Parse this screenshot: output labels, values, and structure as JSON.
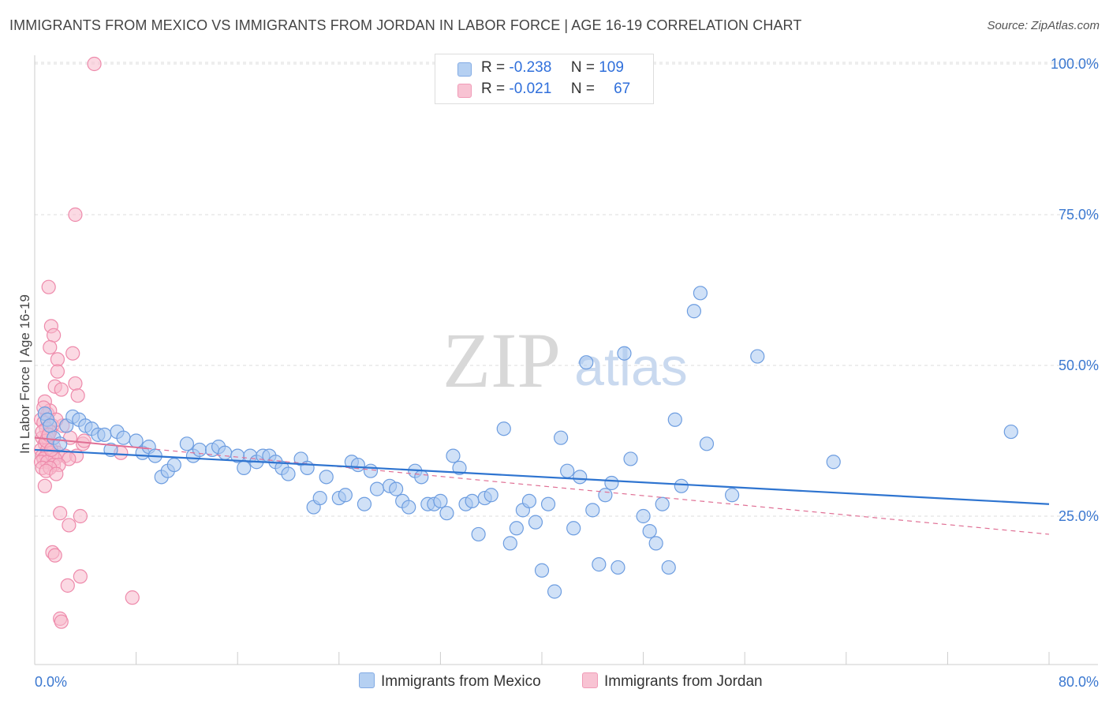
{
  "title": "IMMIGRANTS FROM MEXICO VS IMMIGRANTS FROM JORDAN IN LABOR FORCE | AGE 16-19 CORRELATION CHART",
  "source": "Source: ZipAtlas.com",
  "watermark": {
    "zip": "ZIP",
    "atlas": "atlas"
  },
  "legend_top": {
    "rows": [
      {
        "r_label": "R =",
        "r_value": "-0.238",
        "n_label": "N =",
        "n_value": "109"
      },
      {
        "r_label": "R =",
        "r_value": "-0.021",
        "n_label": "N =",
        "n_value": "67"
      }
    ]
  },
  "legend_bottom": {
    "items": [
      "Immigrants from Mexico",
      "Immigrants from Jordan"
    ]
  },
  "colors": {
    "mexico_fill": "#a9c8f0",
    "mexico_stroke": "#6d9de0",
    "mexico_line": "#2e74d0",
    "jordan_fill": "#f7b9cc",
    "jordan_stroke": "#ee8aab",
    "jordan_line": "#e07095",
    "grid": "#dddddd",
    "tick_label": "#3b78d0"
  },
  "chart_data": {
    "type": "scatter",
    "title": "IMMIGRANTS FROM MEXICO VS IMMIGRANTS FROM JORDAN IN LABOR FORCE | AGE 16-19 CORRELATION CHART",
    "xlabel": "",
    "ylabel": "In Labor Force | Age 16-19",
    "xlim": [
      0,
      80
    ],
    "ylim": [
      0,
      105
    ],
    "x_tick_labels": [
      {
        "value": 0,
        "label": "0.0%"
      },
      {
        "value": 80,
        "label": "80.0%"
      }
    ],
    "y_tick_labels": [
      {
        "value": 25,
        "label": "25.0%"
      },
      {
        "value": 50,
        "label": "50.0%"
      },
      {
        "value": 75,
        "label": "75.0%"
      },
      {
        "value": 100,
        "label": "100.0%"
      }
    ],
    "grid": true,
    "series": [
      {
        "name": "Immigrants from Mexico",
        "R": -0.238,
        "N": 109,
        "trend": {
          "x": [
            0,
            80
          ],
          "y": [
            36.0,
            27.0
          ]
        },
        "points": [
          [
            0.8,
            42
          ],
          [
            1,
            41
          ],
          [
            1.2,
            40
          ],
          [
            1.5,
            38
          ],
          [
            2,
            37
          ],
          [
            2.5,
            40
          ],
          [
            3,
            41.5
          ],
          [
            3.5,
            41
          ],
          [
            4,
            40
          ],
          [
            4.5,
            39.5
          ],
          [
            5,
            38.5
          ],
          [
            5.5,
            38.5
          ],
          [
            6,
            36
          ],
          [
            6.5,
            39
          ],
          [
            7,
            38
          ],
          [
            8,
            37.5
          ],
          [
            8.5,
            35.5
          ],
          [
            9,
            36.5
          ],
          [
            9.5,
            35
          ],
          [
            10,
            31.5
          ],
          [
            10.5,
            32.5
          ],
          [
            11,
            33.5
          ],
          [
            12,
            37
          ],
          [
            12.5,
            35
          ],
          [
            13,
            36
          ],
          [
            14,
            36
          ],
          [
            14.5,
            36.5
          ],
          [
            15,
            35.5
          ],
          [
            16,
            35
          ],
          [
            16.5,
            33
          ],
          [
            17,
            35
          ],
          [
            17.5,
            34
          ],
          [
            18,
            35
          ],
          [
            18.5,
            35
          ],
          [
            19,
            34
          ],
          [
            19.5,
            33
          ],
          [
            20,
            32
          ],
          [
            21,
            34.5
          ],
          [
            21.5,
            33
          ],
          [
            22,
            26.5
          ],
          [
            22.5,
            28
          ],
          [
            23,
            31.5
          ],
          [
            24,
            28
          ],
          [
            24.5,
            28.5
          ],
          [
            25,
            34
          ],
          [
            25.5,
            33.5
          ],
          [
            26,
            27
          ],
          [
            26.5,
            32.5
          ],
          [
            27,
            29.5
          ],
          [
            28,
            30
          ],
          [
            28.5,
            29.5
          ],
          [
            29,
            27.5
          ],
          [
            29.5,
            26.5
          ],
          [
            30,
            32.5
          ],
          [
            30.5,
            31.5
          ],
          [
            31,
            27
          ],
          [
            31.5,
            27
          ],
          [
            32,
            27.5
          ],
          [
            32.5,
            25.5
          ],
          [
            33,
            35
          ],
          [
            33.5,
            33
          ],
          [
            34,
            27
          ],
          [
            34.5,
            27.5
          ],
          [
            35,
            22
          ],
          [
            35.5,
            28
          ],
          [
            36,
            28.5
          ],
          [
            37,
            39.5
          ],
          [
            37.5,
            20.5
          ],
          [
            38,
            23
          ],
          [
            38.5,
            26
          ],
          [
            39,
            27.5
          ],
          [
            39.5,
            24
          ],
          [
            40,
            16
          ],
          [
            40.5,
            27
          ],
          [
            41,
            12.5
          ],
          [
            41.5,
            38
          ],
          [
            42,
            32.5
          ],
          [
            42.5,
            23
          ],
          [
            43,
            31.5
          ],
          [
            43.5,
            50.5
          ],
          [
            44,
            26
          ],
          [
            44.5,
            17
          ],
          [
            45,
            28.5
          ],
          [
            45.5,
            30.5
          ],
          [
            46,
            16.5
          ],
          [
            46.5,
            52
          ],
          [
            47,
            34.5
          ],
          [
            48,
            25
          ],
          [
            48.5,
            22.5
          ],
          [
            49,
            20.5
          ],
          [
            49.5,
            27
          ],
          [
            50,
            16.5
          ],
          [
            50.5,
            41
          ],
          [
            51,
            30
          ],
          [
            52,
            59
          ],
          [
            52.5,
            62
          ],
          [
            53,
            37
          ],
          [
            55,
            28.5
          ],
          [
            57,
            51.5
          ],
          [
            63,
            34
          ],
          [
            77,
            39
          ]
        ]
      },
      {
        "name": "Immigrants from Jordan",
        "R": -0.021,
        "N": 67,
        "trend": {
          "x": [
            0,
            80
          ],
          "y": [
            38.0,
            22.0
          ]
        },
        "points": [
          [
            4.7,
            100
          ],
          [
            3.2,
            75
          ],
          [
            1.1,
            63
          ],
          [
            1.3,
            56.5
          ],
          [
            1.5,
            55
          ],
          [
            1.2,
            53
          ],
          [
            3.0,
            52
          ],
          [
            1.8,
            51
          ],
          [
            1.8,
            49
          ],
          [
            3.2,
            47
          ],
          [
            1.6,
            46.5
          ],
          [
            2.1,
            46
          ],
          [
            3.4,
            45
          ],
          [
            0.8,
            44
          ],
          [
            1.0,
            42
          ],
          [
            0.5,
            41
          ],
          [
            0.7,
            40.5
          ],
          [
            1.4,
            40
          ],
          [
            0.9,
            39.5
          ],
          [
            1.2,
            39
          ],
          [
            0.6,
            38
          ],
          [
            1.0,
            38
          ],
          [
            2.8,
            38
          ],
          [
            3.8,
            37
          ],
          [
            0.8,
            37
          ],
          [
            1.5,
            36.5
          ],
          [
            0.5,
            36
          ],
          [
            1.0,
            36
          ],
          [
            1.2,
            35.5
          ],
          [
            1.8,
            35.5
          ],
          [
            0.6,
            35
          ],
          [
            0.9,
            35
          ],
          [
            1.4,
            35
          ],
          [
            2.4,
            35
          ],
          [
            3.3,
            35
          ],
          [
            0.7,
            34.5
          ],
          [
            1.6,
            34.5
          ],
          [
            2.7,
            34.5
          ],
          [
            0.5,
            34
          ],
          [
            1.0,
            34
          ],
          [
            1.5,
            33.5
          ],
          [
            1.9,
            33.5
          ],
          [
            0.6,
            33
          ],
          [
            1.2,
            33
          ],
          [
            0.9,
            32.5
          ],
          [
            1.7,
            32
          ],
          [
            0.8,
            30
          ],
          [
            2.0,
            25.5
          ],
          [
            3.6,
            25
          ],
          [
            2.7,
            23.5
          ],
          [
            1.4,
            19
          ],
          [
            1.6,
            18.5
          ],
          [
            3.6,
            15
          ],
          [
            2.6,
            13.5
          ],
          [
            2.0,
            8
          ],
          [
            2.1,
            7.5
          ],
          [
            7.7,
            11.5
          ],
          [
            1.2,
            42.5
          ],
          [
            0.6,
            39
          ],
          [
            0.9,
            37.5
          ],
          [
            1.3,
            36
          ],
          [
            2.2,
            40
          ],
          [
            1.7,
            41
          ],
          [
            0.7,
            43
          ],
          [
            3.9,
            37.5
          ],
          [
            6.8,
            35.5
          ],
          [
            1.1,
            38.5
          ]
        ]
      }
    ]
  }
}
